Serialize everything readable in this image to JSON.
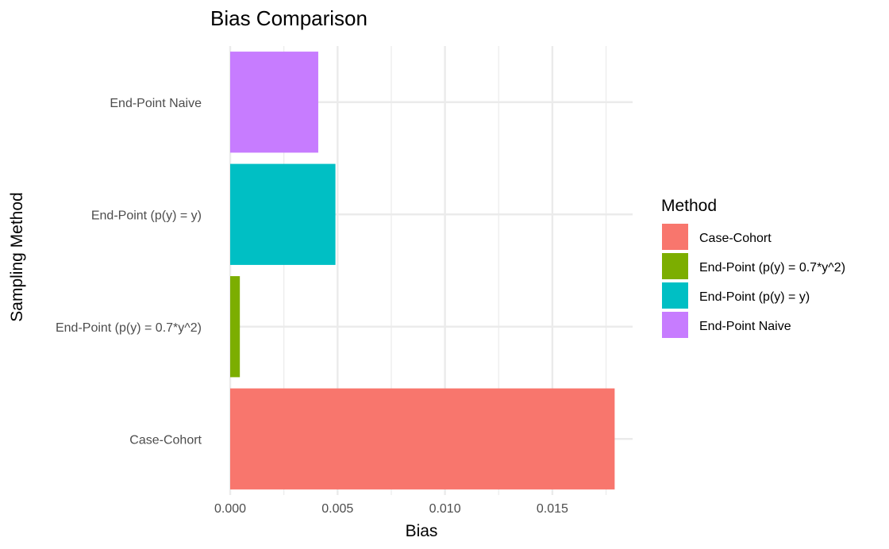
{
  "chart_data": {
    "type": "bar",
    "orientation": "horizontal",
    "title": "Bias Comparison",
    "xlabel": "Bias",
    "ylabel": "Sampling Method",
    "xlim": [
      0,
      0.0187
    ],
    "xticks": [
      0.0,
      0.005,
      0.01,
      0.015
    ],
    "xtick_labels": [
      "0.000",
      "0.005",
      "0.010",
      "0.015"
    ],
    "grid": true,
    "legend": {
      "title": "Method",
      "position": "right",
      "entries": [
        "Case-Cohort",
        "End-Point (p(y) = 0.7*y^2)",
        "End-Point (p(y) = y)",
        "End-Point Naive"
      ]
    },
    "categories": [
      "Case-Cohort",
      "End-Point (p(y) = 0.7*y^2)",
      "End-Point (p(y) = y)",
      "End-Point Naive"
    ],
    "values": [
      0.0179,
      0.00045,
      0.0049,
      0.0041
    ],
    "colors": [
      "#F8766D",
      "#7CAE00",
      "#00BFC4",
      "#C77CFF"
    ]
  }
}
